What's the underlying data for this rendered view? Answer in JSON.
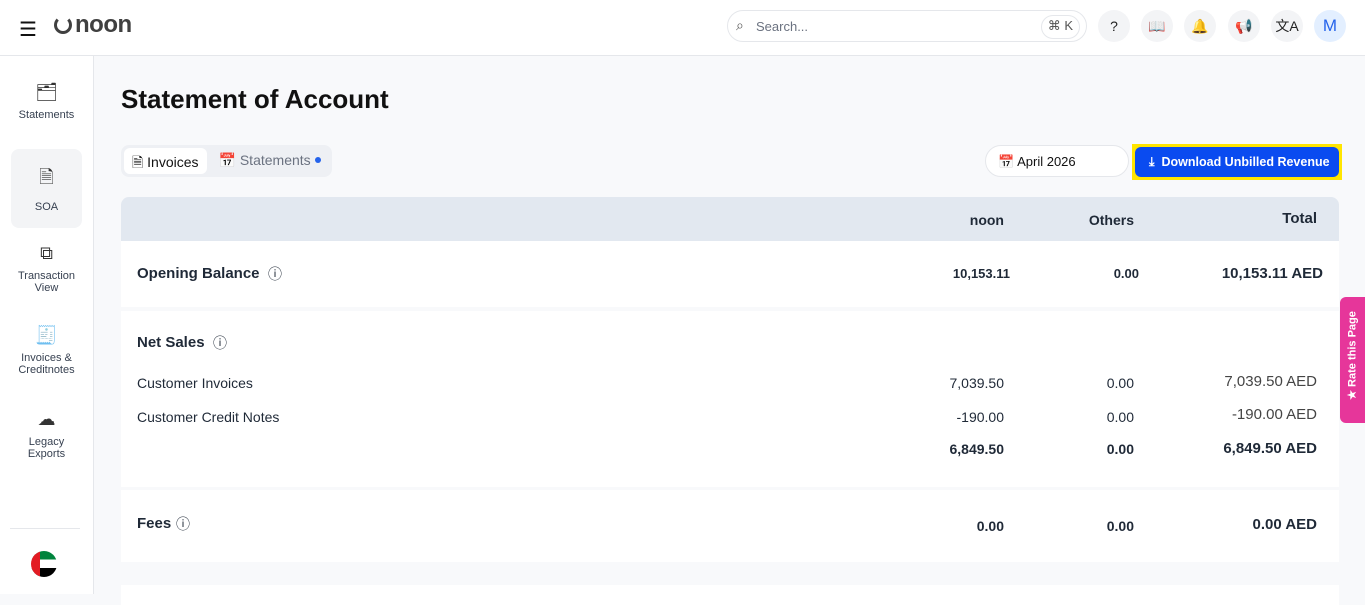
{
  "header": {
    "logo": "noon",
    "search_placeholder": "Search...",
    "shortcut": "⌘ K",
    "avatar": "M"
  },
  "sidebar": {
    "items": [
      {
        "label": "Statements",
        "icon": "folder-dollar-icon"
      },
      {
        "label": "SOA",
        "icon": "document-icon"
      },
      {
        "label": "Transaction View",
        "icon": "transaction-icon"
      },
      {
        "label": "Invoices & Creditnotes",
        "icon": "receipt-icon"
      },
      {
        "label": "Legacy Exports",
        "icon": "cloud-download-icon"
      }
    ],
    "active": "SOA"
  },
  "page": {
    "title": "Statement of Account",
    "tabs": [
      "Invoices",
      "Statements"
    ],
    "date": "April 2026",
    "download_label": "Download Unbilled Revenue"
  },
  "table": {
    "columns": [
      "noon",
      "Others",
      "Total"
    ],
    "opening": {
      "label": "Opening Balance",
      "noon": "10,153.11",
      "others": "0.00",
      "total": "10,153.11 AED"
    },
    "net_sales": {
      "label": "Net Sales",
      "rows": [
        {
          "label": "Customer Invoices",
          "noon": "7,039.50",
          "others": "0.00",
          "total": "7,039.50 AED"
        },
        {
          "label": "Customer Credit Notes",
          "noon": "-190.00",
          "others": "0.00",
          "total": "-190.00 AED"
        }
      ],
      "sum": {
        "noon": "6,849.50",
        "others": "0.00",
        "total": "6,849.50 AED"
      }
    },
    "fees": {
      "label": "Fees",
      "noon": "0.00",
      "others": "0.00",
      "total": "0.00 AED"
    }
  },
  "rate": "Rate this Page",
  "colors": {
    "accent": "#0a4bf0",
    "highlight": "#ffe500",
    "rate": "#e6369a"
  }
}
